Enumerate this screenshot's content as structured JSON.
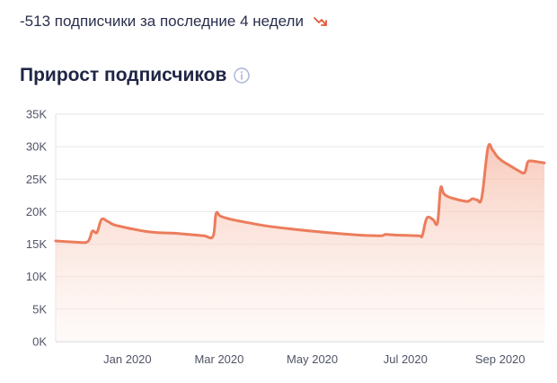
{
  "summary": {
    "text": "-513 подписчики за последние 4 недели",
    "trend_icon": "trend-down-icon",
    "trend_color": "#e25a3a"
  },
  "section": {
    "title": "Прирост подписчиков",
    "info_icon": "info-icon"
  },
  "colors": {
    "line": "#ec7c5c",
    "fill_top": "#f6b9a5",
    "fill_bottom": "#fdf1ec",
    "grid": "#e6e6ea",
    "info": "#a9b3d8"
  },
  "chart_data": {
    "type": "area",
    "title": "",
    "xlabel": "",
    "ylabel": "",
    "ylim": [
      0,
      35000
    ],
    "y_ticks": [
      0,
      5000,
      10000,
      15000,
      20000,
      25000,
      30000,
      35000
    ],
    "y_tick_labels": [
      "0K",
      "5K",
      "10K",
      "15K",
      "20K",
      "25K",
      "30K",
      "35K"
    ],
    "x_tick_labels": [
      "Jan 2020",
      "Mar 2020",
      "May 2020",
      "Jul 2020",
      "Sep 2020"
    ],
    "x_tick_dates": [
      "2020-01-01",
      "2020-03-01",
      "2020-05-01",
      "2020-07-01",
      "2020-09-01"
    ],
    "xlim": [
      "2019-11-15",
      "2020-09-30"
    ],
    "grid": true,
    "series": [
      {
        "x": [
          "2019-11-15",
          "2019-11-22",
          "2019-11-29",
          "2019-12-06",
          "2019-12-09",
          "2019-12-12",
          "2019-12-15",
          "2019-12-19",
          "2019-12-23",
          "2019-12-30",
          "2020-01-05",
          "2020-01-12",
          "2020-01-20",
          "2020-01-30",
          "2020-02-10",
          "2020-02-20",
          "2020-02-26",
          "2020-02-28",
          "2020-03-02",
          "2020-03-09",
          "2020-03-20",
          "2020-04-01",
          "2020-04-15",
          "2020-05-01",
          "2020-05-15",
          "2020-06-01",
          "2020-06-15",
          "2020-06-18",
          "2020-06-25",
          "2020-07-01",
          "2020-07-10",
          "2020-07-12",
          "2020-07-15",
          "2020-07-19",
          "2020-07-22",
          "2020-07-24",
          "2020-07-26",
          "2020-07-29",
          "2020-08-02",
          "2020-08-07",
          "2020-08-11",
          "2020-08-14",
          "2020-08-17",
          "2020-08-20",
          "2020-08-24",
          "2020-08-27",
          "2020-08-30",
          "2020-09-03",
          "2020-09-08",
          "2020-09-13",
          "2020-09-17",
          "2020-09-19",
          "2020-09-21",
          "2020-09-25",
          "2020-09-30"
        ],
        "values": [
          15500,
          15400,
          15300,
          15400,
          17000,
          16800,
          18800,
          18500,
          18000,
          17600,
          17300,
          17000,
          16800,
          16700,
          16500,
          16300,
          16200,
          19700,
          19300,
          18800,
          18300,
          17800,
          17400,
          17000,
          16700,
          16400,
          16300,
          16500,
          16400,
          16350,
          16300,
          16300,
          19000,
          18800,
          18300,
          23600,
          22800,
          22300,
          22000,
          21700,
          21600,
          22000,
          21800,
          22200,
          29800,
          29500,
          28500,
          27700,
          27000,
          26300,
          26000,
          27600,
          27800,
          27700,
          27500
        ]
      }
    ]
  }
}
